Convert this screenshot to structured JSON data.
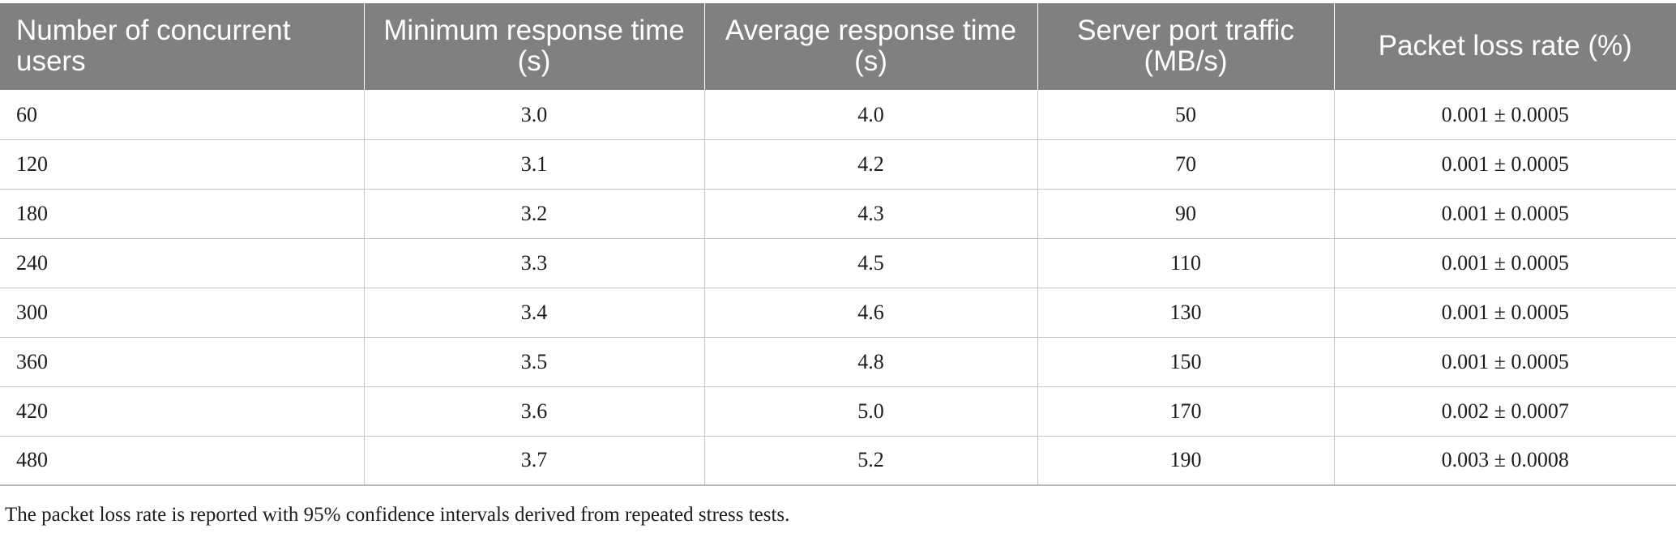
{
  "table": {
    "headers": [
      "Number of concurrent users",
      "Minimum response time (s)",
      "Average response time (s)",
      "Server port traffic (MB/s)",
      "Packet loss rate (%)"
    ],
    "rows": [
      [
        "60",
        "3.0",
        "4.0",
        "50",
        "0.001 ± 0.0005"
      ],
      [
        "120",
        "3.1",
        "4.2",
        "70",
        "0.001 ± 0.0005"
      ],
      [
        "180",
        "3.2",
        "4.3",
        "90",
        "0.001 ± 0.0005"
      ],
      [
        "240",
        "3.3",
        "4.5",
        "110",
        "0.001 ± 0.0005"
      ],
      [
        "300",
        "3.4",
        "4.6",
        "130",
        "0.001 ± 0.0005"
      ],
      [
        "360",
        "3.5",
        "4.8",
        "150",
        "0.001 ± 0.0005"
      ],
      [
        "420",
        "3.6",
        "5.0",
        "170",
        "0.002 ± 0.0007"
      ],
      [
        "480",
        "3.7",
        "5.2",
        "190",
        "0.003 ± 0.0008"
      ]
    ]
  },
  "footnote": "The packet loss rate is reported with 95% confidence intervals derived from repeated stress tests.",
  "colors": {
    "header_background": "#7f817f",
    "header_text": "#ffffff",
    "cell_border": "#c4c4c4",
    "body_text": "#1c1c1c"
  }
}
